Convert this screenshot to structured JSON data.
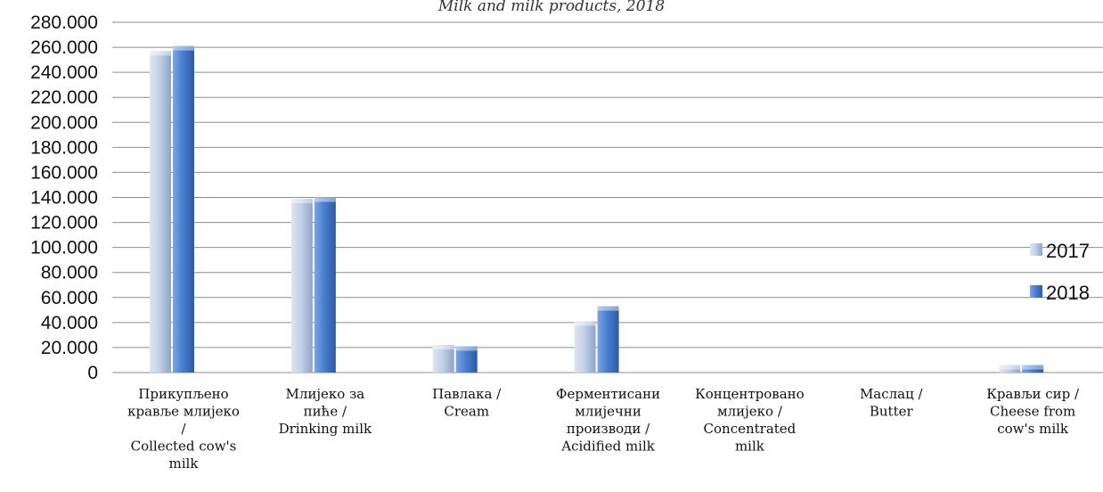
{
  "chart_data": {
    "type": "bar",
    "title": "Milk and milk products, 2018",
    "categories": [
      [
        "Прикупљено",
        "крављe млијеко",
        "/",
        "Collected cow's",
        "milk"
      ],
      [
        "Млијеко за",
        "пиће /",
        "Drinking milk"
      ],
      [
        "Павлака /",
        "Cream"
      ],
      [
        "Ферментисани",
        "млијечни",
        "производи /",
        "Acidified milk"
      ],
      [
        "Концентровано",
        "млијеко /",
        "Concentrated",
        "milk"
      ],
      [
        "Маслац /",
        "Butter"
      ],
      [
        "Крављи сир /",
        "Cheese from",
        "cow's milk"
      ]
    ],
    "series": [
      {
        "name": "2017",
        "color": "#b8c7e0",
        "values": [
          257000,
          139000,
          22000,
          41000,
          0,
          0,
          6000
        ]
      },
      {
        "name": "2018",
        "color": "#4a7fcf",
        "values": [
          261000,
          140000,
          21000,
          53000,
          0,
          0,
          6000
        ]
      }
    ],
    "ylim": [
      0,
      280000
    ],
    "yticks": [
      "0",
      "20.000",
      "40.000",
      "60.000",
      "80.000",
      "100.000",
      "120.000",
      "140.000",
      "160.000",
      "180.000",
      "200.000",
      "220.000",
      "240.000",
      "260.000",
      "280.000"
    ],
    "grid": true,
    "legend_position": "right"
  }
}
